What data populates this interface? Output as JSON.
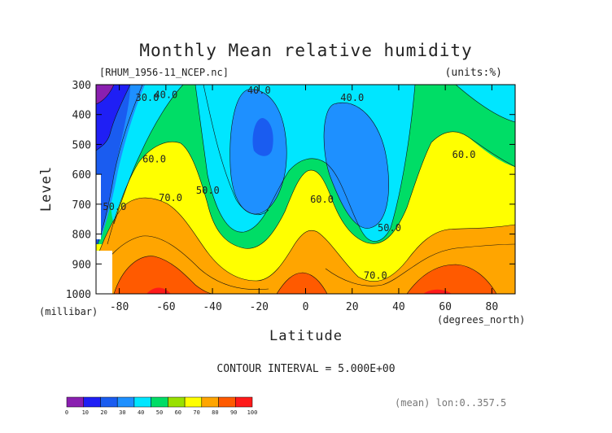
{
  "chart_data": {
    "type": "heatmap",
    "title": "Monthly Mean relative humidity",
    "file_label": "[RHUM_1956-11_NCEP.nc]",
    "units_label": "(units:%)",
    "xlabel": "Latitude",
    "x_units": "(degrees_north)",
    "ylabel": "Level",
    "y_units": "(millibar)",
    "xlim": [
      -90,
      90
    ],
    "ylim": [
      1000,
      300
    ],
    "x_ticks": [
      "-80",
      "-60",
      "-40",
      "-20",
      "0",
      "20",
      "40",
      "60",
      "80"
    ],
    "x_tick_values": [
      -80,
      -60,
      -40,
      -20,
      0,
      20,
      40,
      60,
      80
    ],
    "y_ticks": [
      "300",
      "400",
      "500",
      "600",
      "700",
      "800",
      "900",
      "1000"
    ],
    "y_tick_values": [
      300,
      400,
      500,
      600,
      700,
      800,
      900,
      1000
    ],
    "contour_interval_text": "CONTOUR INTERVAL = 5.000E+00",
    "mean_text": "(mean) lon:0..357.5",
    "contour_labels": [
      {
        "text": "30.0",
        "lat": -68,
        "level": 355
      },
      {
        "text": "40.0",
        "lat": -60,
        "level": 345
      },
      {
        "text": "40.0",
        "lat": -20,
        "level": 330
      },
      {
        "text": "40.0",
        "lat": 20,
        "level": 355
      },
      {
        "text": "60.0",
        "lat": -65,
        "level": 560
      },
      {
        "text": "60.0",
        "lat": 68,
        "level": 545
      },
      {
        "text": "50.0",
        "lat": -42,
        "level": 665
      },
      {
        "text": "50.0",
        "lat": -82,
        "level": 720
      },
      {
        "text": "70.0",
        "lat": -58,
        "level": 690
      },
      {
        "text": "60.0",
        "lat": 7,
        "level": 695
      },
      {
        "text": "50.0",
        "lat": 36,
        "level": 790
      },
      {
        "text": "70.0",
        "lat": 30,
        "level": 950
      }
    ],
    "colorbar": {
      "ticks": [
        "0",
        "10",
        "20",
        "30",
        "40",
        "50",
        "60",
        "70",
        "80",
        "90",
        "100"
      ],
      "colors": [
        "#8a1fb0",
        "#1f1ff5",
        "#1a5cf0",
        "#1e90ff",
        "#00e6ff",
        "#00dd66",
        "#99e000",
        "#ffff00",
        "#ffa500",
        "#ff5a00",
        "#ff1a1a"
      ]
    },
    "grid": false
  }
}
